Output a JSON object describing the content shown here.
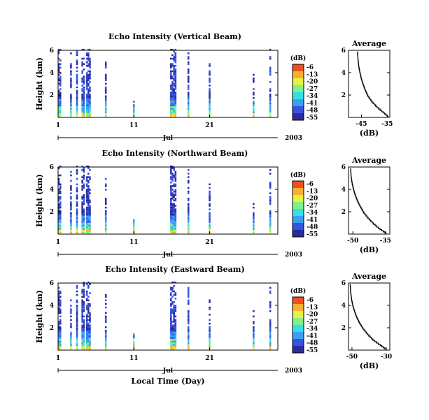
{
  "figure": {
    "month_label": "Jul",
    "year_label": "2003",
    "xlabel": "Local Time (Day)",
    "height_label": "Height (km)",
    "unit_label": "(dB)",
    "average_title": "Average",
    "colorscale": [
      "#2b2b9a",
      "#3355e0",
      "#3aa0f0",
      "#33e0e8",
      "#7ff08a",
      "#e8f040",
      "#f8b030",
      "#f05020"
    ]
  },
  "chart_data": [
    {
      "type": "heatmap",
      "title": "Echo Intensity (Vertical Beam)",
      "xlabel": "",
      "ylabel": "Height (km)",
      "xlim": [
        1,
        30
      ],
      "ylim": [
        0,
        6
      ],
      "x_ticks": [
        "1",
        "11",
        "21"
      ],
      "y_ticks": [
        "2",
        "4",
        "6"
      ],
      "colorbar_label": "(dB)",
      "colorbar_ticks": [
        "-6",
        "-13",
        "-20",
        "-27",
        "-34",
        "-41",
        "-48",
        "-55"
      ],
      "echo_events": [
        {
          "day": 1.2,
          "top_km": 6.0,
          "width": 0.35
        },
        {
          "day": 2.7,
          "top_km": 5.8,
          "width": 0.25
        },
        {
          "day": 3.5,
          "top_km": 6.0,
          "width": 0.25
        },
        {
          "day": 4.3,
          "top_km": 6.0,
          "width": 0.4
        },
        {
          "day": 5.0,
          "top_km": 6.0,
          "width": 0.6
        },
        {
          "day": 7.3,
          "top_km": 5.0,
          "width": 0.2
        },
        {
          "day": 11.0,
          "top_km": 1.6,
          "width": 0.08
        },
        {
          "day": 16.2,
          "top_km": 6.0,
          "width": 0.7
        },
        {
          "day": 18.2,
          "top_km": 5.8,
          "width": 0.2
        },
        {
          "day": 21.0,
          "top_km": 5.0,
          "width": 0.15
        },
        {
          "day": 26.8,
          "top_km": 4.0,
          "width": 0.15
        },
        {
          "day": 29.0,
          "top_km": 6.0,
          "width": 0.2
        }
      ],
      "average_profile": {
        "title": "Average",
        "xlabel": "(dB)",
        "xlim": [
          -50,
          -34
        ],
        "x_ticks": [
          "-45",
          "-35"
        ],
        "ylim": [
          0,
          6
        ],
        "y_ticks": [
          "2",
          "4",
          "6"
        ],
        "heights": [
          5.9,
          5.2,
          4.6,
          4.0,
          3.5,
          3.0,
          2.5,
          2.0,
          1.5,
          1.0,
          0.5,
          0.1
        ],
        "values": [
          -46.5,
          -46.3,
          -46.0,
          -45.5,
          -45.0,
          -44.3,
          -43.5,
          -42.5,
          -41.0,
          -39.0,
          -36.5,
          -34.5
        ]
      }
    },
    {
      "type": "heatmap",
      "title": "Echo Intensity (Northward Beam)",
      "xlabel": "",
      "ylabel": "Height (km)",
      "xlim": [
        1,
        30
      ],
      "ylim": [
        0,
        6
      ],
      "x_ticks": [
        "1",
        "11",
        "21"
      ],
      "y_ticks": [
        "2",
        "4",
        "6"
      ],
      "colorbar_label": "(dB)",
      "colorbar_ticks": [
        "-6",
        "-13",
        "-20",
        "-27",
        "-34",
        "-41",
        "-48",
        "-55"
      ],
      "echo_events": [
        {
          "day": 1.2,
          "top_km": 6.0,
          "width": 0.45
        },
        {
          "day": 2.7,
          "top_km": 5.5,
          "width": 0.25
        },
        {
          "day": 3.5,
          "top_km": 6.0,
          "width": 0.25
        },
        {
          "day": 4.3,
          "top_km": 6.0,
          "width": 0.4
        },
        {
          "day": 5.0,
          "top_km": 6.0,
          "width": 0.6
        },
        {
          "day": 7.3,
          "top_km": 5.0,
          "width": 0.2
        },
        {
          "day": 11.0,
          "top_km": 1.6,
          "width": 0.08
        },
        {
          "day": 16.2,
          "top_km": 6.0,
          "width": 0.7
        },
        {
          "day": 18.2,
          "top_km": 5.8,
          "width": 0.2
        },
        {
          "day": 21.0,
          "top_km": 4.5,
          "width": 0.15
        },
        {
          "day": 26.8,
          "top_km": 3.5,
          "width": 0.15
        },
        {
          "day": 29.0,
          "top_km": 5.8,
          "width": 0.2
        }
      ],
      "average_profile": {
        "title": "Average",
        "xlabel": "(dB)",
        "xlim": [
          -52,
          -33
        ],
        "x_ticks": [
          "-50",
          "-35"
        ],
        "ylim": [
          0,
          6
        ],
        "y_ticks": [
          "2",
          "4",
          "6"
        ],
        "heights": [
          5.9,
          5.2,
          4.6,
          4.0,
          3.5,
          3.0,
          2.5,
          2.0,
          1.5,
          1.0,
          0.5,
          0.1
        ],
        "values": [
          -51.0,
          -50.8,
          -50.3,
          -49.6,
          -48.8,
          -47.8,
          -46.5,
          -45.0,
          -43.0,
          -40.5,
          -37.5,
          -34.5
        ]
      }
    },
    {
      "type": "heatmap",
      "title": "Echo Intensity (Eastward Beam)",
      "xlabel": "Local Time (Day)",
      "ylabel": "Height (km)",
      "xlim": [
        1,
        30
      ],
      "ylim": [
        0,
        6
      ],
      "x_ticks": [
        "1",
        "11",
        "21"
      ],
      "y_ticks": [
        "2",
        "4",
        "6"
      ],
      "colorbar_label": "(dB)",
      "colorbar_ticks": [
        "-6",
        "-13",
        "-20",
        "-27",
        "-34",
        "-41",
        "-48",
        "-55"
      ],
      "echo_events": [
        {
          "day": 1.2,
          "top_km": 5.5,
          "width": 0.45
        },
        {
          "day": 2.7,
          "top_km": 4.5,
          "width": 0.25
        },
        {
          "day": 3.5,
          "top_km": 5.8,
          "width": 0.25
        },
        {
          "day": 4.3,
          "top_km": 6.0,
          "width": 0.4
        },
        {
          "day": 5.0,
          "top_km": 6.0,
          "width": 0.6
        },
        {
          "day": 7.3,
          "top_km": 5.0,
          "width": 0.2
        },
        {
          "day": 11.0,
          "top_km": 1.6,
          "width": 0.08
        },
        {
          "day": 16.2,
          "top_km": 6.0,
          "width": 0.7
        },
        {
          "day": 18.2,
          "top_km": 5.8,
          "width": 0.2
        },
        {
          "day": 21.0,
          "top_km": 4.5,
          "width": 0.15
        },
        {
          "day": 26.8,
          "top_km": 3.8,
          "width": 0.15
        },
        {
          "day": 29.0,
          "top_km": 5.8,
          "width": 0.2
        }
      ],
      "average_profile": {
        "title": "Average",
        "xlabel": "(dB)",
        "xlim": [
          -52,
          -28
        ],
        "x_ticks": [
          "-50",
          "-30"
        ],
        "ylim": [
          0,
          6
        ],
        "y_ticks": [
          "2",
          "4",
          "6"
        ],
        "heights": [
          5.9,
          5.2,
          4.6,
          4.0,
          3.5,
          3.0,
          2.5,
          2.0,
          1.5,
          1.0,
          0.5,
          0.1
        ],
        "values": [
          -51.0,
          -50.7,
          -50.2,
          -49.4,
          -48.4,
          -47.2,
          -45.6,
          -43.6,
          -41.0,
          -37.8,
          -33.5,
          -30.0
        ]
      }
    }
  ]
}
